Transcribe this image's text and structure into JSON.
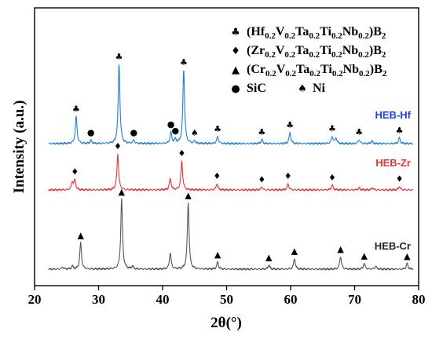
{
  "chart_data": {
    "type": "line",
    "xlabel": "2θ(°)",
    "ylabel": "Intensity (a.u.)",
    "xlim": [
      20,
      80
    ],
    "xticks": [
      20,
      30,
      40,
      50,
      60,
      70,
      80
    ],
    "grid": false,
    "legend": {
      "placement": "top-right",
      "entries": [
        {
          "symbol": "♣",
          "symbol_name": "club",
          "parts": [
            [
              "(Hf",
              ""
            ],
            [
              "0.2",
              "sub"
            ],
            [
              "V",
              ""
            ],
            [
              "0.2",
              "sub"
            ],
            [
              "Ta",
              ""
            ],
            [
              "0.2",
              "sub"
            ],
            [
              "Ti",
              ""
            ],
            [
              "0.2",
              "sub"
            ],
            [
              "Nb",
              ""
            ],
            [
              "0.2",
              "sub"
            ],
            [
              ")B",
              ""
            ],
            [
              "2",
              "sub"
            ]
          ]
        },
        {
          "symbol": "♦",
          "symbol_name": "diamond",
          "parts": [
            [
              "(Zr",
              ""
            ],
            [
              "0.2",
              "sub"
            ],
            [
              "V",
              ""
            ],
            [
              "0.2",
              "sub"
            ],
            [
              "Ta",
              ""
            ],
            [
              "0.2",
              "sub"
            ],
            [
              "Ti",
              ""
            ],
            [
              "0.2",
              "sub"
            ],
            [
              "Nb",
              ""
            ],
            [
              "0.2",
              "sub"
            ],
            [
              ")B",
              ""
            ],
            [
              "2",
              "sub"
            ]
          ]
        },
        {
          "symbol": "▲",
          "symbol_name": "triangle",
          "parts": [
            [
              "(Cr",
              ""
            ],
            [
              "0.2",
              "sub"
            ],
            [
              "V",
              ""
            ],
            [
              "0.2",
              "sub"
            ],
            [
              "Ta",
              ""
            ],
            [
              "0.2",
              "sub"
            ],
            [
              "Ti",
              ""
            ],
            [
              "0.2",
              "sub"
            ],
            [
              "Nb",
              ""
            ],
            [
              "0.2",
              "sub"
            ],
            [
              ")B",
              ""
            ],
            [
              "2",
              "sub"
            ]
          ]
        },
        {
          "symbol": "●",
          "symbol_name": "circle",
          "label": "SiC"
        },
        {
          "symbol": "♠",
          "symbol_name": "spade",
          "label": "Ni"
        }
      ]
    },
    "series": [
      {
        "name": "HEB-Hf",
        "color": "#1f7fd6",
        "label_color": "#1b3fe0",
        "peaks": [
          {
            "x": 26.5,
            "h": 0.34,
            "marker": "club"
          },
          {
            "x": 28.8,
            "h": 0.04,
            "marker": "circle"
          },
          {
            "x": 33.2,
            "h": 1.0,
            "marker": "club"
          },
          {
            "x": 35.5,
            "h": 0.04,
            "marker": "circle"
          },
          {
            "x": 41.3,
            "h": 0.14,
            "marker": "circle"
          },
          {
            "x": 42.0,
            "h": 0.05,
            "marker": "circle"
          },
          {
            "x": 43.3,
            "h": 0.93,
            "marker": "club"
          },
          {
            "x": 45.0,
            "h": 0.03,
            "marker": "spade"
          },
          {
            "x": 48.6,
            "h": 0.09,
            "marker": "club"
          },
          {
            "x": 55.5,
            "h": 0.05,
            "marker": "club"
          },
          {
            "x": 59.9,
            "h": 0.14,
            "marker": "club"
          },
          {
            "x": 66.5,
            "h": 0.09,
            "marker": "club"
          },
          {
            "x": 67.1,
            "h": 0.07
          },
          {
            "x": 70.7,
            "h": 0.05,
            "marker": "club"
          },
          {
            "x": 72.7,
            "h": 0.03
          },
          {
            "x": 77.0,
            "h": 0.07,
            "marker": "club"
          }
        ]
      },
      {
        "name": "HEB-Zr",
        "color": "#e8333a",
        "label_color": "#e8333a",
        "peaks": [
          {
            "x": 25.9,
            "h": 0.11
          },
          {
            "x": 26.3,
            "h": 0.14,
            "marker": "diamond"
          },
          {
            "x": 33.0,
            "h": 0.52,
            "marker": "diamond"
          },
          {
            "x": 41.2,
            "h": 0.16
          },
          {
            "x": 43.0,
            "h": 0.42,
            "marker": "diamond"
          },
          {
            "x": 48.5,
            "h": 0.09,
            "marker": "diamond"
          },
          {
            "x": 55.5,
            "h": 0.04,
            "marker": "diamond"
          },
          {
            "x": 59.6,
            "h": 0.09,
            "marker": "diamond"
          },
          {
            "x": 66.5,
            "h": 0.07,
            "marker": "diamond"
          },
          {
            "x": 70.7,
            "h": 0.03
          },
          {
            "x": 72.8,
            "h": 0.03
          },
          {
            "x": 77.0,
            "h": 0.05,
            "marker": "diamond"
          }
        ]
      },
      {
        "name": "HEB-Cr",
        "color": "#555555",
        "label_color": "#222222",
        "peaks": [
          {
            "x": 24.4,
            "h": 0.03
          },
          {
            "x": 25.9,
            "h": 0.04
          },
          {
            "x": 27.2,
            "h": 0.37,
            "marker": "triangle"
          },
          {
            "x": 33.6,
            "h": 0.99,
            "marker": "triangle"
          },
          {
            "x": 35.3,
            "h": 0.04
          },
          {
            "x": 41.2,
            "h": 0.23
          },
          {
            "x": 44.0,
            "h": 0.94,
            "marker": "triangle"
          },
          {
            "x": 48.6,
            "h": 0.1,
            "marker": "triangle"
          },
          {
            "x": 56.6,
            "h": 0.06,
            "marker": "triangle"
          },
          {
            "x": 60.6,
            "h": 0.15,
            "marker": "triangle"
          },
          {
            "x": 67.8,
            "h": 0.18,
            "marker": "triangle"
          },
          {
            "x": 71.5,
            "h": 0.08,
            "marker": "triangle"
          },
          {
            "x": 73.3,
            "h": 0.04
          },
          {
            "x": 78.2,
            "h": 0.08,
            "marker": "triangle"
          }
        ]
      }
    ]
  }
}
